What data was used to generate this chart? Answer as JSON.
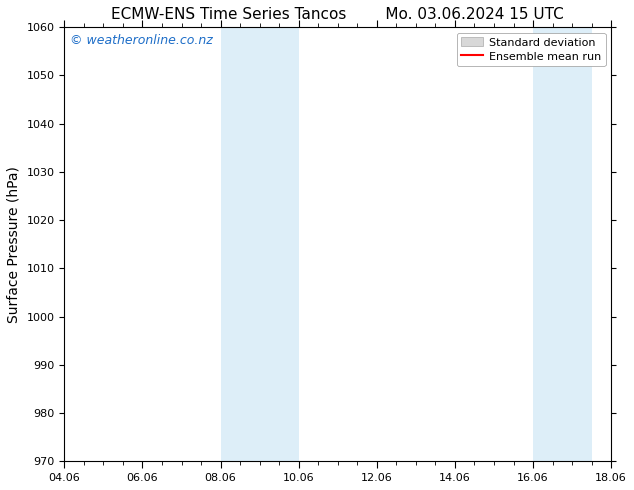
{
  "title_left": "ECMW-ENS Time Series Tancos",
  "title_right": "Mo. 03.06.2024 15 UTC",
  "ylabel": "Surface Pressure (hPa)",
  "ylim": [
    970,
    1060
  ],
  "yticks": [
    970,
    980,
    990,
    1000,
    1010,
    1020,
    1030,
    1040,
    1050,
    1060
  ],
  "xlim_start": 0,
  "xlim_end": 14,
  "xtick_labels": [
    "04.06",
    "06.06",
    "08.06",
    "10.06",
    "12.06",
    "14.06",
    "16.06",
    "18.06"
  ],
  "xtick_positions": [
    0,
    2,
    4,
    6,
    8,
    10,
    12,
    14
  ],
  "shaded_bands": [
    {
      "x_start": 4,
      "x_end": 6
    },
    {
      "x_start": 12,
      "x_end": 13.5
    }
  ],
  "shaded_color": "#ddeef8",
  "background_color": "#ffffff",
  "watermark_text": "© weatheronline.co.nz",
  "watermark_color": "#1e6ec8",
  "legend_std_label": "Standard deviation",
  "legend_mean_label": "Ensemble mean run",
  "legend_std_facecolor": "#d8d8d8",
  "legend_std_edgecolor": "#aaaaaa",
  "legend_mean_color": "#ff0000",
  "title_fontsize": 11,
  "tick_fontsize": 8,
  "ylabel_fontsize": 10,
  "watermark_fontsize": 9,
  "legend_fontsize": 8
}
